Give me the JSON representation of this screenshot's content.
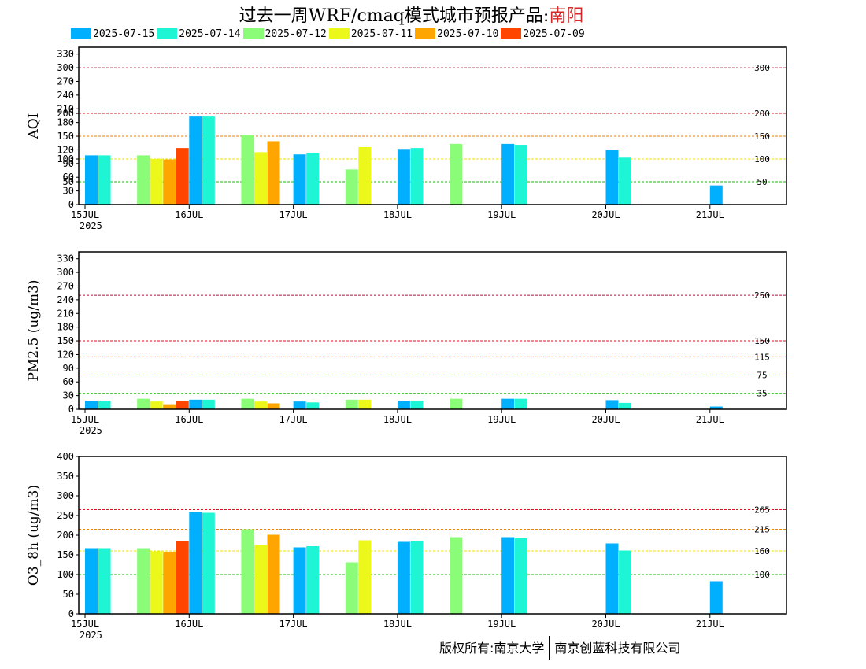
{
  "title_prefix": "过去一周WRF/cmaq模式城市预报产品:",
  "title_city": "南阳",
  "colors": {
    "city": "#d62828"
  },
  "legend": [
    {
      "label": "2025-07-15",
      "color": "#00b0ff"
    },
    {
      "label": "2025-07-14",
      "color": "#1ef5d4"
    },
    {
      "label": "2025-07-12",
      "color": "#8afc78"
    },
    {
      "label": "2025-07-11",
      "color": "#ecf81a"
    },
    {
      "label": "2025-07-10",
      "color": "#ffa500"
    },
    {
      "label": "2025-07-09",
      "color": "#ff4500"
    }
  ],
  "footer": {
    "left": "版权所有:南京大学",
    "right": "南京创蓝科技有限公司"
  },
  "chart_data": [
    {
      "type": "bar",
      "ylabel": "AQI",
      "x_ticks": [
        "15JUL",
        "16JUL",
        "17JUL",
        "18JUL",
        "19JUL",
        "20JUL",
        "21JUL"
      ],
      "x_sublabel": "2025",
      "ylim": [
        0,
        345
      ],
      "yticks": [
        0,
        30,
        50,
        60,
        90,
        100,
        120,
        150,
        180,
        200,
        210,
        240,
        270,
        300,
        330
      ],
      "thresholds": [
        {
          "value": 300,
          "label": "300",
          "color": "#b0103c"
        },
        {
          "value": 200,
          "label": "200",
          "color": "#e01020"
        },
        {
          "value": 150,
          "label": "150",
          "color": "#f08000"
        },
        {
          "value": 100,
          "label": "100",
          "color": "#f2e200"
        },
        {
          "value": 50,
          "label": "50",
          "color": "#16c000"
        }
      ],
      "series": [
        {
          "name": "2025-07-15",
          "color": "#00b0ff",
          "x": [
            0.0,
            1.0,
            2.0,
            3.0,
            4.0,
            5.0,
            6.0
          ],
          "values": [
            108,
            193,
            110,
            122,
            133,
            119,
            42
          ]
        },
        {
          "name": "2025-07-14",
          "color": "#1ef5d4",
          "x": [
            0.125,
            1.125,
            2.125,
            3.125,
            4.125,
            5.125
          ],
          "values": [
            108,
            193,
            113,
            124,
            131,
            103
          ]
        },
        {
          "name": "2025-07-12",
          "color": "#8afc78",
          "x": [
            0.5,
            1.5,
            2.5,
            3.5
          ],
          "values": [
            108,
            152,
            77,
            133
          ]
        },
        {
          "name": "2025-07-11",
          "color": "#ecf81a",
          "x": [
            0.625,
            1.625,
            2.625
          ],
          "values": [
            100,
            115,
            126
          ]
        },
        {
          "name": "2025-07-10",
          "color": "#ffa500",
          "x": [
            0.75,
            1.75
          ],
          "values": [
            99,
            139
          ]
        },
        {
          "name": "2025-07-09",
          "color": "#ff4500",
          "x": [
            0.875
          ],
          "values": [
            124
          ]
        }
      ]
    },
    {
      "type": "bar",
      "ylabel": "PM2.5 (ug/m3)",
      "x_ticks": [
        "15JUL",
        "16JUL",
        "17JUL",
        "18JUL",
        "19JUL",
        "20JUL",
        "21JUL"
      ],
      "x_sublabel": "2025",
      "ylim": [
        0,
        345
      ],
      "yticks": [
        0,
        30,
        60,
        90,
        120,
        150,
        180,
        210,
        240,
        270,
        300,
        330
      ],
      "thresholds": [
        {
          "value": 250,
          "label": "250",
          "color": "#b0103c"
        },
        {
          "value": 150,
          "label": "150",
          "color": "#e01020"
        },
        {
          "value": 115,
          "label": "115",
          "color": "#f08000"
        },
        {
          "value": 75,
          "label": "75",
          "color": "#f2e200"
        },
        {
          "value": 35,
          "label": "35",
          "color": "#16c000"
        }
      ],
      "series": [
        {
          "name": "2025-07-15",
          "color": "#00b0ff",
          "x": [
            0.0,
            1.0,
            2.0,
            3.0,
            4.0,
            5.0,
            6.0
          ],
          "values": [
            19,
            21,
            17,
            19,
            23,
            20,
            6
          ]
        },
        {
          "name": "2025-07-14",
          "color": "#1ef5d4",
          "x": [
            0.125,
            1.125,
            2.125,
            3.125,
            4.125,
            5.125
          ],
          "values": [
            19,
            21,
            15,
            19,
            23,
            14
          ]
        },
        {
          "name": "2025-07-12",
          "color": "#8afc78",
          "x": [
            0.5,
            1.5,
            2.5,
            3.5
          ],
          "values": [
            23,
            23,
            21,
            23
          ]
        },
        {
          "name": "2025-07-11",
          "color": "#ecf81a",
          "x": [
            0.625,
            1.625,
            2.625
          ],
          "values": [
            17,
            17,
            21
          ]
        },
        {
          "name": "2025-07-10",
          "color": "#ffa500",
          "x": [
            0.75,
            1.75
          ],
          "values": [
            11,
            13
          ]
        },
        {
          "name": "2025-07-09",
          "color": "#ff4500",
          "x": [
            0.875
          ],
          "values": [
            19
          ]
        }
      ]
    },
    {
      "type": "bar",
      "ylabel": "O3_8h (ug/m3)",
      "x_ticks": [
        "15JUL",
        "16JUL",
        "17JUL",
        "18JUL",
        "19JUL",
        "20JUL",
        "21JUL"
      ],
      "x_sublabel": "2025",
      "ylim": [
        0,
        400
      ],
      "yticks": [
        0,
        50,
        100,
        150,
        200,
        250,
        300,
        350,
        400
      ],
      "thresholds": [
        {
          "value": 265,
          "label": "265",
          "color": "#e01020"
        },
        {
          "value": 215,
          "label": "215",
          "color": "#f08000"
        },
        {
          "value": 160,
          "label": "160",
          "color": "#f2e200"
        },
        {
          "value": 100,
          "label": "100",
          "color": "#16c000"
        }
      ],
      "series": [
        {
          "name": "2025-07-15",
          "color": "#00b0ff",
          "x": [
            0.0,
            1.0,
            2.0,
            3.0,
            4.0,
            5.0,
            6.0
          ],
          "values": [
            167,
            258,
            169,
            183,
            195,
            179,
            83
          ]
        },
        {
          "name": "2025-07-14",
          "color": "#1ef5d4",
          "x": [
            0.125,
            1.125,
            2.125,
            3.125,
            4.125,
            5.125
          ],
          "values": [
            167,
            257,
            172,
            185,
            192,
            161
          ]
        },
        {
          "name": "2025-07-12",
          "color": "#8afc78",
          "x": [
            0.5,
            1.5,
            2.5,
            3.5
          ],
          "values": [
            167,
            215,
            131,
            195
          ]
        },
        {
          "name": "2025-07-11",
          "color": "#ecf81a",
          "x": [
            0.625,
            1.625,
            2.625
          ],
          "values": [
            159,
            175,
            187
          ]
        },
        {
          "name": "2025-07-10",
          "color": "#ffa500",
          "x": [
            0.75,
            1.75
          ],
          "values": [
            158,
            201
          ]
        },
        {
          "name": "2025-07-09",
          "color": "#ff4500",
          "x": [
            0.875
          ],
          "values": [
            185
          ]
        }
      ]
    }
  ]
}
